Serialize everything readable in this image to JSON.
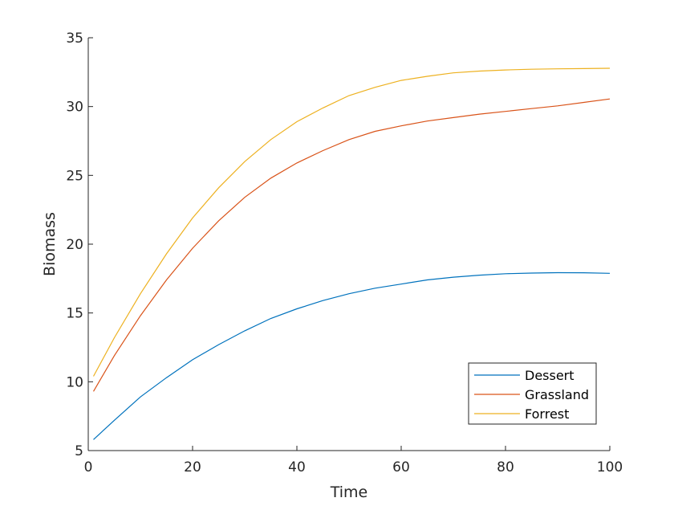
{
  "chart_data": {
    "type": "line",
    "xlabel": "Time",
    "ylabel": "Biomass",
    "xlim": [
      0,
      100
    ],
    "ylim": [
      5,
      35
    ],
    "xticks": [
      0,
      20,
      40,
      60,
      80,
      100
    ],
    "yticks": [
      5,
      10,
      15,
      20,
      25,
      30,
      35
    ],
    "grid": false,
    "legend_position": "bottom-right",
    "x": [
      1,
      5,
      10,
      15,
      20,
      25,
      30,
      35,
      40,
      45,
      50,
      55,
      60,
      65,
      70,
      75,
      80,
      85,
      90,
      95,
      100
    ],
    "series": [
      {
        "name": "Dessert",
        "color": "#0072BD",
        "values": [
          5.8,
          7.2,
          8.9,
          10.3,
          11.6,
          12.7,
          13.7,
          14.6,
          15.3,
          15.9,
          16.4,
          16.8,
          17.1,
          17.4,
          17.6,
          17.75,
          17.85,
          17.9,
          17.93,
          17.92,
          17.88
        ]
      },
      {
        "name": "Grassland",
        "color": "#D95319",
        "values": [
          9.3,
          11.9,
          14.8,
          17.4,
          19.7,
          21.7,
          23.4,
          24.8,
          25.9,
          26.8,
          27.6,
          28.2,
          28.6,
          28.95,
          29.2,
          29.45,
          29.65,
          29.85,
          30.05,
          30.3,
          30.55
        ]
      },
      {
        "name": "Forrest",
        "color": "#EDB120",
        "values": [
          10.4,
          13.2,
          16.4,
          19.3,
          21.9,
          24.1,
          26.0,
          27.6,
          28.9,
          29.9,
          30.8,
          31.4,
          31.9,
          32.2,
          32.45,
          32.58,
          32.66,
          32.71,
          32.74,
          32.76,
          32.78
        ]
      }
    ]
  }
}
